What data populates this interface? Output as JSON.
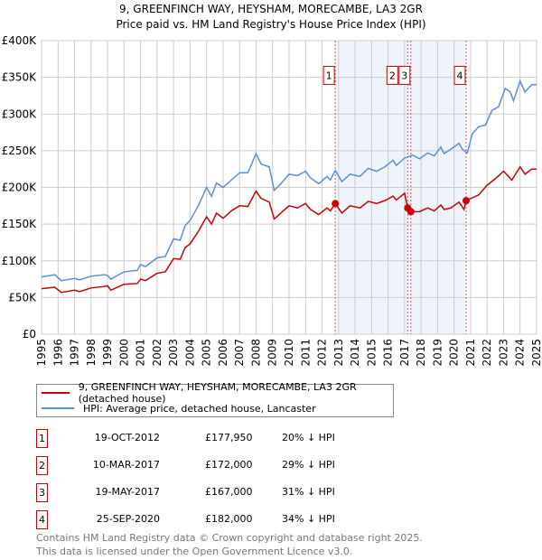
{
  "title": "9, GREENFINCH WAY, HEYSHAM, MORECAMBE, LA3 2GR",
  "subtitle": "Price paid vs. HM Land Registry's House Price Index (HPI)",
  "chart_data": {
    "type": "line",
    "xlim": [
      1995,
      2025
    ],
    "ylim": [
      0,
      400000
    ],
    "yticks": [
      0,
      50000,
      100000,
      150000,
      200000,
      250000,
      300000,
      350000,
      400000
    ],
    "ytick_labels": [
      "£0",
      "£50K",
      "£100K",
      "£150K",
      "£200K",
      "£250K",
      "£300K",
      "£350K",
      "£400K"
    ],
    "xticks": [
      "1995",
      "1996",
      "1997",
      "1998",
      "1999",
      "2000",
      "2001",
      "2002",
      "2003",
      "2004",
      "2005",
      "2006",
      "2007",
      "2008",
      "2009",
      "2010",
      "2011",
      "2012",
      "2013",
      "2014",
      "2015",
      "2016",
      "2017",
      "2018",
      "2019",
      "2020",
      "2021",
      "2022",
      "2023",
      "2024",
      "2025"
    ],
    "grid": true,
    "shaded_range": [
      2012.8,
      2020.73
    ],
    "series": [
      {
        "name": "9, GREENFINCH WAY, HEYSHAM, MORECAMBE, LA3 2GR (detached house)",
        "color": "#cc0000",
        "x": [
          1995,
          1995.8,
          1996.2,
          1997,
          1997.3,
          1998,
          1998.8,
          1999,
          1999.2,
          2000,
          2000.8,
          2001,
          2001.3,
          2002,
          2002.5,
          2003,
          2003.4,
          2003.7,
          2004,
          2004.5,
          2005,
          2005.3,
          2005.6,
          2006,
          2006.5,
          2007,
          2007.5,
          2008,
          2008.3,
          2008.8,
          2009.1,
          2009.5,
          2010,
          2010.5,
          2011,
          2011.3,
          2011.8,
          2012.3,
          2012.5,
          2012.8,
          2013.2,
          2013.7,
          2014.3,
          2014.8,
          2015.3,
          2015.8,
          2016.3,
          2016.5,
          2017,
          2017.19,
          2017.38,
          2017.9,
          2018.4,
          2018.8,
          2019.2,
          2019.4,
          2019.8,
          2020.3,
          2020.6,
          2020.73,
          2021.5,
          2022,
          2022.5,
          2023,
          2023.3,
          2023.5,
          2024,
          2024.3,
          2024.7,
          2025
        ],
        "y": [
          62000,
          64000,
          57000,
          60000,
          58000,
          63000,
          65000,
          66000,
          60000,
          68000,
          69000,
          75000,
          73000,
          83000,
          85000,
          103000,
          102000,
          118000,
          123000,
          140000,
          160000,
          150000,
          165000,
          158000,
          168000,
          175000,
          174000,
          195000,
          185000,
          180000,
          157000,
          165000,
          175000,
          172000,
          178000,
          170000,
          163000,
          172000,
          168000,
          177950,
          165000,
          175000,
          172000,
          181000,
          178000,
          182000,
          188000,
          183000,
          192000,
          172000,
          167000,
          167000,
          172000,
          168000,
          176000,
          170000,
          172000,
          180000,
          170000,
          182000,
          190000,
          203000,
          212000,
          222000,
          215000,
          210000,
          228000,
          218000,
          225000,
          225000
        ]
      },
      {
        "name": "HPI: Average price, detached house, Lancaster",
        "color": "#5b8fd4",
        "x": [
          1995,
          1995.8,
          1996.2,
          1997,
          1997.3,
          1998,
          1998.8,
          1999,
          1999.2,
          2000,
          2000.8,
          2001,
          2001.3,
          2002,
          2002.5,
          2003,
          2003.4,
          2003.7,
          2004,
          2004.5,
          2005,
          2005.3,
          2005.6,
          2006,
          2006.5,
          2007,
          2007.5,
          2008,
          2008.3,
          2008.8,
          2009.1,
          2009.5,
          2010,
          2010.5,
          2011,
          2011.3,
          2011.8,
          2012.3,
          2012.5,
          2012.8,
          2013.2,
          2013.7,
          2014.3,
          2014.8,
          2015.3,
          2015.8,
          2016.3,
          2016.5,
          2017,
          2017.5,
          2017.9,
          2018.4,
          2018.8,
          2019.2,
          2019.4,
          2019.8,
          2020.3,
          2020.5,
          2020.8,
          2021.1,
          2021.5,
          2021.9,
          2022.3,
          2022.7,
          2023.1,
          2023.4,
          2023.6,
          2024,
          2024.3,
          2024.7,
          2025
        ],
        "y": [
          78000,
          81000,
          73000,
          76000,
          74000,
          79000,
          81000,
          80000,
          75000,
          85000,
          87000,
          95000,
          92000,
          104000,
          106000,
          130000,
          128000,
          148000,
          155000,
          175000,
          200000,
          188000,
          206000,
          200000,
          210000,
          220000,
          220000,
          246000,
          232000,
          228000,
          196000,
          205000,
          218000,
          216000,
          222000,
          213000,
          205000,
          215000,
          210000,
          223000,
          208000,
          218000,
          215000,
          226000,
          222000,
          228000,
          237000,
          230000,
          240000,
          244000,
          239000,
          247000,
          243000,
          255000,
          246000,
          252000,
          260000,
          252000,
          247000,
          273000,
          283000,
          285000,
          305000,
          310000,
          335000,
          330000,
          318000,
          345000,
          330000,
          340000,
          340000
        ]
      }
    ],
    "transactions": [
      {
        "label": "1",
        "x": 2012.8,
        "price": 177950
      },
      {
        "label": "2",
        "x": 2017.19,
        "price": 172000
      },
      {
        "label": "3",
        "x": 2017.38,
        "price": 167000
      },
      {
        "label": "4",
        "x": 2020.73,
        "price": 182000
      }
    ]
  },
  "legend": {
    "property": "9, GREENFINCH WAY, HEYSHAM, MORECAMBE, LA3 2GR (detached house)",
    "hpi": "HPI: Average price, detached house, Lancaster"
  },
  "table": [
    {
      "num": "1",
      "date": "19-OCT-2012",
      "price": "£177,950",
      "hpi": "20% ↓ HPI"
    },
    {
      "num": "2",
      "date": "10-MAR-2017",
      "price": "£172,000",
      "hpi": "29% ↓ HPI"
    },
    {
      "num": "3",
      "date": "19-MAY-2017",
      "price": "£167,000",
      "hpi": "31% ↓ HPI"
    },
    {
      "num": "4",
      "date": "25-SEP-2020",
      "price": "£182,000",
      "hpi": "34% ↓ HPI"
    }
  ],
  "footer": {
    "line1": "Contains HM Land Registry data © Crown copyright and database right 2025.",
    "line2": "This data is licensed under the Open Government Licence v3.0."
  }
}
